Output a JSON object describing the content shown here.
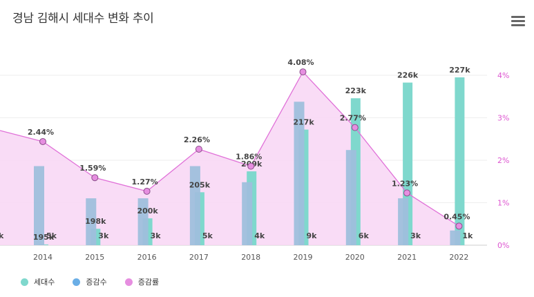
{
  "title": "경남 김해시 세대수 변화 추이",
  "menu_icon": "hamburger-menu-icon",
  "colors": {
    "households": "#7fd8cd",
    "change": "#9fbfdc",
    "rate_fill": "#f8d6f4",
    "rate_line": "#e070d8",
    "rate_axis": "#dd55d0"
  },
  "chart_data": {
    "type": "bar",
    "categories": [
      "2014",
      "2015",
      "2016",
      "2017",
      "2018",
      "2019",
      "2020",
      "2021",
      "2022"
    ],
    "series": [
      {
        "name": "세대수",
        "values": [
          195,
          198,
          200,
          205,
          209,
          217,
          223,
          226,
          227
        ],
        "labels": [
          "195k",
          "198k",
          "200k",
          "205k",
          "209k",
          "217k",
          "223k",
          "226k",
          "227k"
        ]
      },
      {
        "name": "증감수",
        "values": [
          5,
          3,
          3,
          5,
          4,
          9,
          6,
          3,
          1
        ],
        "labels": [
          "5k",
          "3k",
          "3k",
          "5k",
          "4k",
          "9k",
          "6k",
          "3k",
          "1k"
        ]
      },
      {
        "name": "증감률",
        "values": [
          2.44,
          1.59,
          1.27,
          2.26,
          1.86,
          4.08,
          2.77,
          1.23,
          0.45
        ],
        "labels": [
          "2.44%",
          "1.59%",
          "1.27%",
          "2.26%",
          "1.86%",
          "4.08%",
          "2.77%",
          "1.23%",
          "0.45%"
        ]
      }
    ],
    "y2_ticks": [
      "0%",
      "1%",
      "2%",
      "3%",
      "4%"
    ],
    "y2_range": [
      0,
      4.4
    ],
    "clipped_left_labels": {
      "prev_change": "k"
    }
  }
}
